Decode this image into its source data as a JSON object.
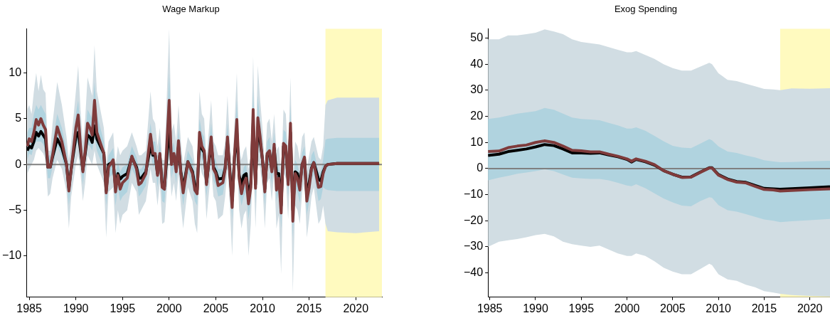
{
  "chart_data": [
    {
      "type": "line",
      "title": "Wage Markup",
      "x": [
        1984.8,
        1985,
        1985.25,
        1985.5,
        1985.75,
        1986,
        1986.25,
        1986.5,
        1986.75,
        1987,
        1987.25,
        1987.5,
        1988,
        1988.5,
        1989,
        1989.25,
        1989.5,
        1990,
        1990.25,
        1990.5,
        1990.75,
        1991,
        1991.25,
        1991.5,
        1991.75,
        1992,
        1992.25,
        1993,
        1993.25,
        1993.5,
        1994,
        1994.25,
        1994.5,
        1994.75,
        1995,
        1995.5,
        1996,
        1996.5,
        1996.75,
        1997,
        1997.5,
        1998,
        1998.25,
        1998.5,
        1998.75,
        1999,
        1999.25,
        1999.5,
        2000,
        2000.25,
        2000.5,
        2000.75,
        2001,
        2001.25,
        2001.5,
        2002,
        2002.5,
        2002.75,
        2003,
        2003.25,
        2003.5,
        2003.75,
        2004,
        2004.5,
        2004.75,
        2005,
        2005.25,
        2005.75,
        2006,
        2006.25,
        2006.5,
        2006.75,
        2007,
        2007.25,
        2007.5,
        2007.75,
        2008,
        2008.25,
        2008.5,
        2008.75,
        2009,
        2009.25,
        2009.5,
        2009.75,
        2010,
        2010.25,
        2010.5,
        2010.75,
        2011,
        2011.25,
        2011.5,
        2011.75,
        2012,
        2012.25,
        2012.5,
        2012.75,
        2013,
        2013.25,
        2013.5,
        2013.75,
        2014,
        2014.25,
        2014.5,
        2014.75,
        2015,
        2015.25,
        2015.5,
        2016,
        2016.25,
        2016.5,
        2016.75,
        2017,
        2018,
        2020,
        2022.5
      ],
      "series": [
        {
          "color": "#000000",
          "values": [
            1.5,
            2,
            1.8,
            2.5,
            3.5,
            3.1,
            3.6,
            3.2,
            2.8,
            -0.3,
            -0.3,
            0.8,
            2.8,
            1.8,
            0,
            -2.6,
            -0.5,
            3,
            3.5,
            1.5,
            -0.6,
            1.2,
            3.2,
            3,
            2.4,
            4.2,
            2.8,
            1.2,
            -2.9,
            0,
            0.3,
            -2.5,
            -1,
            -1.6,
            -1.3,
            -1,
            0.8,
            -0.3,
            -1.5,
            -1.5,
            -0.8,
            2,
            1,
            1,
            -1,
            1,
            -2.2,
            -2.4,
            4,
            0.2,
            1,
            -0.5,
            2,
            -0.8,
            -2.6,
            0.3,
            -0.8,
            -2.3,
            -2.8,
            2.5,
            1.7,
            1.3,
            -2,
            2.3,
            -0.3,
            -0.8,
            -1.6,
            -1.5,
            -0.4,
            2.5,
            -0.8,
            -4,
            0.8,
            3.5,
            -1.2,
            -2.2,
            -1.2,
            -1,
            -3.5,
            -2,
            4.5,
            -2.2,
            4,
            2.5,
            0.5,
            -2.7,
            1,
            1.3,
            -0.6,
            1.8,
            -1,
            -1,
            -4.5,
            2,
            1.7,
            -1.8,
            3.5,
            -5,
            -0.8,
            -1,
            -2.3,
            0,
            0.6,
            -3.5,
            -2,
            -0.4,
            0.2,
            -1.6,
            -1.8,
            -0.8,
            -0.2,
            0,
            0.1,
            0.1,
            0.1
          ],
          "lower": [
            -1,
            -0.5,
            0,
            0.5,
            1.5,
            1.8,
            1.5,
            1.2,
            0.5,
            -3.5,
            -3.2,
            -1.5,
            0.5,
            -0.5,
            -3,
            -7,
            -3.5,
            0,
            1,
            -1,
            -4,
            -2,
            1,
            0.5,
            0,
            1.5,
            0,
            -2,
            -8,
            -3,
            -2.5,
            -7.5,
            -5,
            -6.5,
            -5.5,
            -5,
            -2,
            -3,
            -5.5,
            -5,
            -4,
            -0.5,
            -2,
            -2,
            -4.5,
            -2,
            -6.5,
            -6.3,
            0.5,
            -3.5,
            -2,
            -4,
            -1,
            -4.5,
            -7,
            -2.5,
            -4,
            -6.5,
            -7.5,
            0,
            -1,
            -1.5,
            -6,
            -0.5,
            -3.5,
            -4,
            -6,
            -5.5,
            -3.5,
            -0.5,
            -4.5,
            -10,
            -2.5,
            1,
            -5,
            -7,
            -5.5,
            -5,
            -10,
            -6.5,
            1,
            -7,
            0.5,
            -0.5,
            -2.5,
            -7,
            -2,
            -1.5,
            -4,
            -1,
            -7,
            -5.5,
            -12,
            -1,
            -1.5,
            -6,
            0,
            -14,
            -4.5,
            -5,
            -6.5,
            -3,
            -2,
            -8,
            -6,
            -3.5,
            -2.5,
            -6.5,
            -6,
            -4.5,
            -6.5,
            -7.3,
            -7.4,
            -7.5,
            -7.3
          ],
          "upper": [
            6,
            6.5,
            5.5,
            8,
            10,
            8,
            9.8,
            8.2,
            7.8,
            1.5,
            1.5,
            4.5,
            9,
            6.5,
            3,
            0.5,
            2.5,
            8,
            10.8,
            6,
            2.5,
            5,
            9.5,
            8.5,
            7.5,
            13,
            8,
            4,
            0,
            2.5,
            3.5,
            0,
            2,
            1,
            1.5,
            2,
            3.5,
            2,
            1,
            1,
            1.5,
            8,
            5,
            4.5,
            2,
            4,
            0.5,
            0.5,
            14.8,
            3.5,
            4.5,
            2.5,
            6.5,
            2.5,
            0,
            3,
            2,
            0,
            -0.5,
            8,
            5.5,
            5,
            0.5,
            7,
            2.5,
            2,
            1,
            1,
            2.5,
            7.5,
            2.5,
            -1,
            4.5,
            10,
            2,
            0.5,
            1.5,
            2,
            -0.5,
            1,
            11.8,
            1,
            10.8,
            7,
            4,
            0,
            4.5,
            5,
            2.5,
            5.5,
            1.5,
            2,
            -1,
            6,
            5.5,
            1,
            9.5,
            -1.5,
            2.5,
            2,
            0.5,
            3,
            3.5,
            -0.5,
            1,
            2.5,
            3,
            0.8,
            0.5,
            2,
            6.5,
            7,
            7.3,
            7.3,
            7.3
          ]
        },
        {
          "color": "#7f3b3b",
          "values": [
            2,
            2.8,
            2.5,
            3.5,
            4.9,
            4.3,
            5,
            4.3,
            3.8,
            -0.3,
            -0.3,
            1,
            4.1,
            2.5,
            0,
            -2.9,
            -0.5,
            4,
            5.4,
            2,
            -0.8,
            1.5,
            4.5,
            4,
            3.2,
            7,
            3.5,
            1.2,
            -3.1,
            -0.3,
            0.5,
            -3,
            -1.2,
            -2.7,
            -2,
            -1.5,
            0.9,
            -0.5,
            -2.2,
            -2,
            -1,
            3.3,
            1.2,
            1.2,
            -1.2,
            1.2,
            -2.5,
            -2.7,
            7,
            0,
            1.2,
            -0.8,
            2.6,
            -1,
            -3.1,
            0.3,
            -1,
            -2.8,
            -3.2,
            3.5,
            2,
            1.5,
            -2.2,
            3,
            -0.5,
            -1,
            -2.3,
            -2,
            -0.5,
            3,
            -1,
            -4.7,
            1,
            4.9,
            -1.5,
            -3.2,
            -2,
            -1.5,
            -4.3,
            -2.5,
            6,
            -2.6,
            5.1,
            3,
            0.5,
            -3,
            1.2,
            1.5,
            -0.8,
            2.2,
            -2.8,
            -1.5,
            -5.3,
            2.3,
            2,
            -2.2,
            4.5,
            -6.2,
            -1,
            -1.5,
            -2.8,
            0,
            0.8,
            -4,
            -2.5,
            -0.5,
            0.2,
            -2.5,
            -2.4,
            -1,
            -0.2,
            0,
            0.1,
            0.1,
            0.1
          ],
          "lower": [
            0.5,
            1.2,
            1,
            2,
            2.5,
            2.5,
            2.5,
            2.2,
            1.5,
            -1.5,
            -1.5,
            -0.3,
            2,
            0.8,
            -1.5,
            -4.5,
            -2,
            2,
            2.5,
            0.3,
            -2.2,
            0,
            2.2,
            2,
            1.5,
            3,
            1.5,
            -0.5,
            -4.5,
            -1.5,
            -1,
            -4.5,
            -2.5,
            -4,
            -3.5,
            -3,
            -0.5,
            -1.5,
            -3.5,
            -3.2,
            -2.3,
            1.5,
            -0.2,
            -0.2,
            -2.5,
            -0.2,
            -4,
            -4.2,
            3,
            -1.5,
            -0.3,
            -2,
            1,
            -2.5,
            -4.5,
            -1,
            -2.3,
            -4,
            -4.5,
            1.8,
            0.5,
            0,
            -3.5,
            1.5,
            -1.8,
            -2.3,
            -3.5,
            -3.3,
            -1.8,
            1.5,
            -2.5,
            -6,
            -0.5,
            3,
            -3,
            -4.5,
            -3.5,
            -3,
            -6,
            -4,
            3.5,
            -4.2,
            3,
            1.5,
            -1,
            -4.5,
            -0.2,
            0,
            -2.2,
            0.8,
            -4,
            -3,
            -7,
            1,
            0.5,
            -3.5,
            2.5,
            -8,
            -2.5,
            -3,
            -4.2,
            -1.3,
            -0.5,
            -5.5,
            -4,
            -1.8,
            -1,
            -4,
            -3.8,
            -2.5,
            -2.7,
            -2.8,
            -2.9,
            -2.9,
            -2.9
          ],
          "upper": [
            3.5,
            4,
            4,
            5.5,
            6.5,
            6,
            6.5,
            6,
            5.5,
            1,
            1,
            2.5,
            5.5,
            4,
            1.5,
            -1,
            1,
            5.5,
            7,
            3.8,
            0.8,
            3,
            6,
            5.5,
            5,
            9,
            5.5,
            2.5,
            -1.5,
            1,
            1.8,
            -1.2,
            0.3,
            -0.8,
            -0.3,
            0,
            2,
            0.8,
            -0.5,
            -0.5,
            0.3,
            4.5,
            2.5,
            2.5,
            0.3,
            2.5,
            -1,
            -1.2,
            10,
            1.5,
            2.5,
            0.5,
            4,
            0.5,
            -1.5,
            1.5,
            0.5,
            -1.2,
            -1.5,
            5,
            3.5,
            3,
            -0.8,
            4.5,
            1,
            0.5,
            -0.5,
            -0.5,
            0.8,
            4.5,
            0.5,
            -2.8,
            2.5,
            7,
            0,
            -1.5,
            -0.3,
            0,
            -2.5,
            -1,
            8.5,
            -1,
            7.5,
            4.5,
            2,
            -1.5,
            2.5,
            3,
            0.6,
            3.5,
            -0.5,
            0,
            -3,
            3.8,
            3.5,
            -0.8,
            6.5,
            -3.5,
            0.5,
            0,
            -1.2,
            1.3,
            2,
            -2.2,
            -1,
            1,
            1.5,
            -0.8,
            -0.8,
            0.5,
            2.7,
            2.8,
            2.9,
            2.9,
            2.9
          ]
        }
      ],
      "xlim": [
        1984.7,
        2022.8
      ],
      "xticks": [
        1985,
        1990,
        1995,
        2000,
        2005,
        2010,
        2015,
        2020
      ],
      "ylim": [
        -14.5,
        14.8
      ],
      "yticks": [
        {
          "value": -10,
          "label": "−10"
        },
        {
          "value": -5,
          "label": "−5"
        },
        0,
        5,
        10
      ],
      "ref_lines": [
        {
          "axis": "y",
          "value": 0,
          "color": "#808080"
        }
      ],
      "bands": [
        {
          "axis": "x",
          "from": 2016.75,
          "to": 2022.8,
          "color": "#fffabf"
        }
      ],
      "grid": false,
      "legend": false
    },
    {
      "type": "line",
      "title": "Exog Spending",
      "x": [
        1984.8,
        1986,
        1987,
        1988,
        1989,
        1990,
        1991,
        1992,
        1993,
        1994,
        1995,
        1996,
        1997,
        1998,
        1999,
        2000,
        2000.5,
        2001,
        2002,
        2003,
        2004,
        2005,
        2006,
        2007,
        2008,
        2009,
        2009.3,
        2010,
        2011,
        2012,
        2013,
        2014,
        2015,
        2016,
        2016.75,
        2018,
        2020,
        2022.2
      ],
      "series": [
        {
          "color": "#000000",
          "values": [
            5,
            5.5,
            6.5,
            7,
            7.5,
            8.3,
            9.2,
            8.8,
            7.5,
            6,
            6,
            5.8,
            6,
            5.2,
            4.5,
            3.5,
            2.5,
            3.5,
            2.6,
            1.3,
            -0.8,
            -2.2,
            -3.3,
            -3.2,
            -1.4,
            0.3,
            0.3,
            -2.3,
            -4,
            -5,
            -5.3,
            -6.5,
            -7.6,
            -7.8,
            -7.9,
            -7.7,
            -7.4,
            -7
          ],
          "lower": [
            -30,
            -28,
            -27.5,
            -27,
            -26.3,
            -25.5,
            -25,
            -26,
            -28,
            -29,
            -29.5,
            -30,
            -29.5,
            -31,
            -32.5,
            -33.5,
            -33.5,
            -32.5,
            -33.5,
            -35.5,
            -38,
            -39.5,
            -40.5,
            -40.5,
            -38.5,
            -36.5,
            -37,
            -40.5,
            -42.5,
            -43,
            -44.5,
            -45.5,
            -47,
            -47.5,
            -48,
            -48.5,
            -48.8,
            -49
          ],
          "upper": [
            49.5,
            49.5,
            51,
            51,
            51.5,
            52,
            53.3,
            52.5,
            51.5,
            49.5,
            48.5,
            48,
            47.5,
            46.5,
            45.5,
            44.5,
            44.5,
            45,
            43.5,
            42,
            40,
            38.5,
            37.5,
            37.5,
            39,
            40.5,
            40,
            36.5,
            34,
            33.5,
            32.5,
            31.5,
            30.5,
            30.3,
            30,
            30.7,
            30.6,
            30.8
          ]
        },
        {
          "color": "#7f3b3b",
          "values": [
            6.5,
            6.7,
            8,
            8.6,
            9,
            10,
            10.6,
            10,
            8.6,
            7,
            6.8,
            6.4,
            6.4,
            5.5,
            4.7,
            3.7,
            2.8,
            3.7,
            2.8,
            1.5,
            -0.8,
            -2.2,
            -3.4,
            -3.3,
            -1.5,
            0.2,
            0.2,
            -2.5,
            -4.2,
            -5.2,
            -5.5,
            -6.8,
            -8,
            -8.2,
            -8.6,
            -8.4,
            -8.1,
            -7.8
          ],
          "lower": [
            -4.5,
            -3.5,
            -2.8,
            -2,
            -1.5,
            -1,
            -0.3,
            -1,
            -2.3,
            -3.5,
            -3.8,
            -4,
            -4,
            -4.5,
            -5.5,
            -6.5,
            -6.8,
            -6,
            -7.5,
            -9.5,
            -11.5,
            -13,
            -14.2,
            -14.5,
            -12.5,
            -11,
            -11.2,
            -14,
            -16,
            -16.5,
            -17.5,
            -18.5,
            -19.5,
            -20,
            -20.5,
            -20.2,
            -19.8,
            -19.3
          ],
          "upper": [
            19,
            19.5,
            20.3,
            21,
            21.5,
            22,
            23.2,
            22.5,
            21,
            19.5,
            19,
            18.8,
            18.5,
            17.5,
            16.5,
            15.3,
            15.3,
            15.8,
            14.5,
            12.5,
            10.5,
            8.7,
            8,
            7.8,
            9.5,
            11.3,
            10.8,
            8.5,
            6.5,
            6,
            5,
            4.3,
            3.2,
            2.7,
            2.4,
            2.5,
            2.8,
            3
          ]
        }
      ],
      "xlim": [
        1984.8,
        2022.2
      ],
      "xticks": [
        1985,
        1990,
        1995,
        2000,
        2005,
        2010,
        2015,
        2020
      ],
      "ylim": [
        -49.3,
        53.5
      ],
      "yticks": [
        {
          "value": -40,
          "label": "−40"
        },
        {
          "value": -30,
          "label": "−30"
        },
        {
          "value": -20,
          "label": "−20"
        },
        {
          "value": -10,
          "label": "−10"
        },
        0,
        10,
        20,
        30,
        40,
        50
      ],
      "ref_lines": [
        {
          "axis": "y",
          "value": 0,
          "color": "#808080"
        }
      ],
      "bands": [
        {
          "axis": "x",
          "from": 2016.75,
          "to": 2022.2,
          "color": "#fffabf"
        }
      ],
      "grid": false,
      "legend": false
    }
  ]
}
